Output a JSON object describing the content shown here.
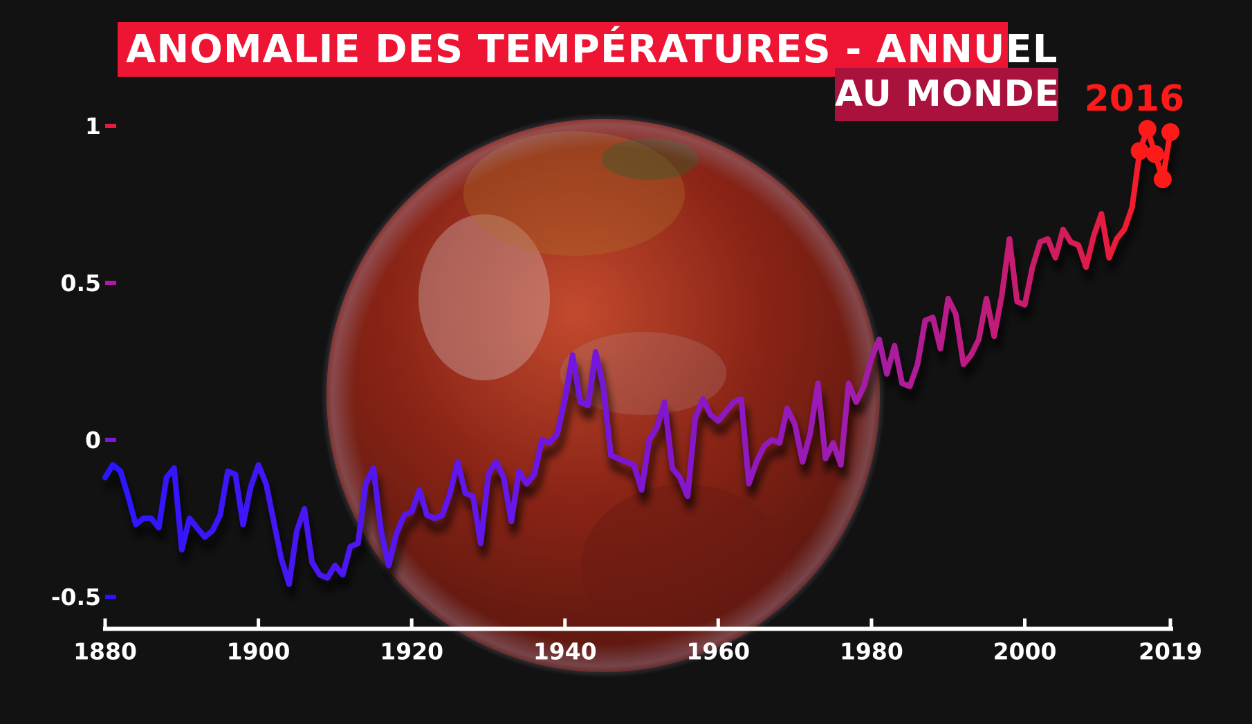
{
  "title": "ANOMALIE DES TEMPÉRATURES - ANNUEL",
  "subtitle": "AU MONDE",
  "highlight_label": "2016",
  "colors": {
    "title_bg": "#ee1433",
    "subtitle_bg": "#a8123c",
    "line_start": "#2a14ff",
    "line_end": "#ff1a1a",
    "highlight": "#ff1a1a"
  },
  "chart_data": {
    "type": "line",
    "title": "ANOMALIE DES TEMPÉRATURES - ANNUEL",
    "subtitle": "AU MONDE",
    "xlabel": "",
    "ylabel": "",
    "xlim": [
      1880,
      2019
    ],
    "ylim": [
      -0.6,
      1.1
    ],
    "grid": false,
    "x_ticks": [
      1880,
      1900,
      1920,
      1940,
      1960,
      1980,
      2000,
      2019
    ],
    "y_ticks": [
      -0.5,
      0,
      0.5,
      1
    ],
    "y_tick_labels": [
      "-0.5",
      "0",
      "0.5",
      "1"
    ],
    "x": [
      1880,
      1881,
      1882,
      1883,
      1884,
      1885,
      1886,
      1887,
      1888,
      1889,
      1890,
      1891,
      1892,
      1893,
      1894,
      1895,
      1896,
      1897,
      1898,
      1899,
      1900,
      1901,
      1902,
      1903,
      1904,
      1905,
      1906,
      1907,
      1908,
      1909,
      1910,
      1911,
      1912,
      1913,
      1914,
      1915,
      1916,
      1917,
      1918,
      1919,
      1920,
      1921,
      1922,
      1923,
      1924,
      1925,
      1926,
      1927,
      1928,
      1929,
      1930,
      1931,
      1932,
      1933,
      1934,
      1935,
      1936,
      1937,
      1938,
      1939,
      1940,
      1941,
      1942,
      1943,
      1944,
      1945,
      1946,
      1947,
      1948,
      1949,
      1950,
      1951,
      1952,
      1953,
      1954,
      1955,
      1956,
      1957,
      1958,
      1959,
      1960,
      1961,
      1962,
      1963,
      1964,
      1965,
      1966,
      1967,
      1968,
      1969,
      1970,
      1971,
      1972,
      1973,
      1974,
      1975,
      1976,
      1977,
      1978,
      1979,
      1980,
      1981,
      1982,
      1983,
      1984,
      1985,
      1986,
      1987,
      1988,
      1989,
      1990,
      1991,
      1992,
      1993,
      1994,
      1995,
      1996,
      1997,
      1998,
      1999,
      2000,
      2001,
      2002,
      2003,
      2004,
      2005,
      2006,
      2007,
      2008,
      2009,
      2010,
      2011,
      2012,
      2013,
      2014,
      2015,
      2016,
      2017,
      2018,
      2019
    ],
    "series": [
      {
        "values": [
          -0.12,
          -0.08,
          -0.1,
          -0.18,
          -0.27,
          -0.25,
          -0.25,
          -0.28,
          -0.12,
          -0.09,
          -0.35,
          -0.25,
          -0.28,
          -0.31,
          -0.29,
          -0.24,
          -0.1,
          -0.11,
          -0.27,
          -0.15,
          -0.08,
          -0.14,
          -0.26,
          -0.38,
          -0.46,
          -0.29,
          -0.22,
          -0.39,
          -0.43,
          -0.44,
          -0.4,
          -0.43,
          -0.34,
          -0.33,
          -0.14,
          -0.09,
          -0.29,
          -0.4,
          -0.3,
          -0.24,
          -0.23,
          -0.16,
          -0.24,
          -0.25,
          -0.24,
          -0.17,
          -0.07,
          -0.17,
          -0.18,
          -0.33,
          -0.11,
          -0.07,
          -0.12,
          -0.26,
          -0.1,
          -0.14,
          -0.11,
          0.0,
          -0.01,
          0.02,
          0.13,
          0.27,
          0.12,
          0.11,
          0.28,
          0.17,
          -0.05,
          -0.06,
          -0.07,
          -0.08,
          -0.16,
          0.0,
          0.04,
          0.12,
          -0.09,
          -0.12,
          -0.18,
          0.07,
          0.13,
          0.08,
          0.06,
          0.09,
          0.12,
          0.13,
          -0.14,
          -0.07,
          -0.02,
          0.0,
          -0.01,
          0.1,
          0.05,
          -0.07,
          0.02,
          0.18,
          -0.06,
          -0.01,
          -0.08,
          0.18,
          0.12,
          0.17,
          0.26,
          0.32,
          0.21,
          0.3,
          0.18,
          0.17,
          0.24,
          0.38,
          0.39,
          0.29,
          0.45,
          0.4,
          0.24,
          0.27,
          0.32,
          0.45,
          0.33,
          0.46,
          0.64,
          0.44,
          0.43,
          0.55,
          0.63,
          0.64,
          0.58,
          0.67,
          0.63,
          0.62,
          0.55,
          0.65,
          0.72,
          0.58,
          0.64,
          0.67,
          0.74,
          0.92,
          0.99,
          0.91,
          0.83,
          0.98
        ]
      }
    ],
    "highlight": {
      "x": [
        2015,
        2016,
        2017,
        2018,
        2019
      ],
      "label": "2016"
    }
  }
}
